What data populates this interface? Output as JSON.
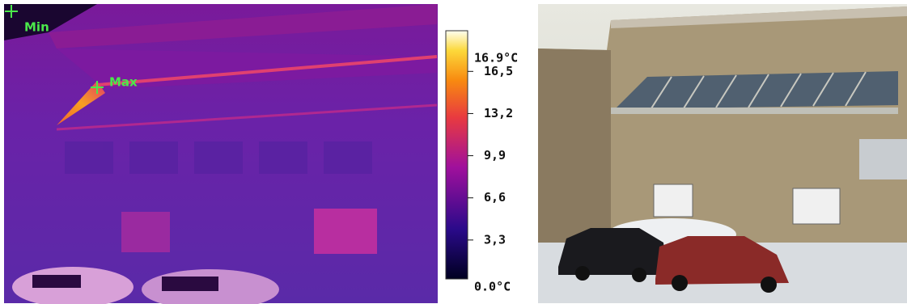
{
  "thermal_image": {
    "min_marker": "Min",
    "max_marker": "Max"
  },
  "colorbar": {
    "lim": [
      {
        "value": 0,
        "label": "0.0°C"
      },
      {
        "value": 16.9,
        "label": "16.9°C"
      }
    ],
    "ticks": [
      {
        "value": 16.5,
        "label": "16,5"
      },
      {
        "value": 13.2,
        "label": "13,2"
      },
      {
        "value": 9.9,
        "label": "9,9"
      },
      {
        "value": 6.6,
        "label": "6,6"
      },
      {
        "value": 3.3,
        "label": "3,3"
      }
    ]
  }
}
